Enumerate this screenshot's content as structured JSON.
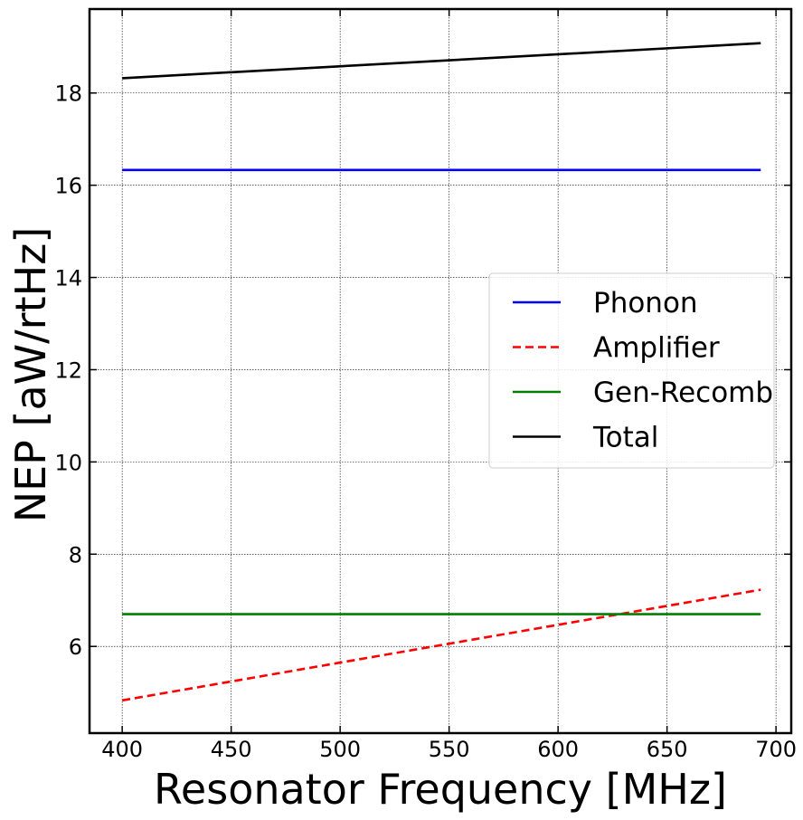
{
  "chart_data": {
    "type": "line",
    "xlabel": "Resonator Frequency [MHz]",
    "ylabel": "NEP [aW/rtHz]",
    "xlim": [
      385,
      707
    ],
    "ylim": [
      4.12,
      19.82
    ],
    "xticks": [
      400,
      450,
      500,
      550,
      600,
      650,
      700
    ],
    "yticks": [
      6,
      8,
      10,
      12,
      14,
      16,
      18
    ],
    "x_tick_labels": [
      "400",
      "450",
      "500",
      "550",
      "600",
      "650",
      "700"
    ],
    "y_tick_labels": [
      "6",
      "8",
      "10",
      "12",
      "14",
      "16",
      "18"
    ],
    "grid": true,
    "legend_position": "center-right",
    "series": [
      {
        "name": "Phonon",
        "color": "#0000ff",
        "style": "solid",
        "x": [
          400,
          693
        ],
        "y": [
          16.33,
          16.33
        ]
      },
      {
        "name": "Amplifier",
        "color": "#ff0000",
        "style": "dashed",
        "x": [
          400,
          693
        ],
        "y": [
          4.83,
          7.23
        ]
      },
      {
        "name": "Gen-Recomb",
        "color": "#007f00",
        "style": "solid",
        "x": [
          400,
          693
        ],
        "y": [
          6.7,
          6.7
        ]
      },
      {
        "name": "Total",
        "color": "#000000",
        "style": "solid",
        "x": [
          400,
          693
        ],
        "y": [
          18.32,
          19.08
        ]
      }
    ]
  }
}
